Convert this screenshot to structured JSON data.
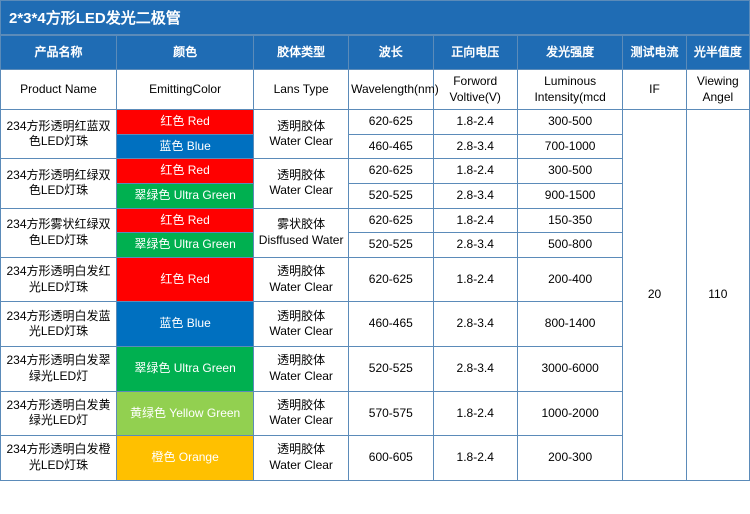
{
  "title": "2*3*4方形LED发光二极管",
  "colors": {
    "header_bg": "#1f6cb4",
    "border": "#5b8bb9",
    "red": "#ff0000",
    "blue": "#0070c0",
    "ultragreen": "#00b050",
    "yellowgreen": "#92d050",
    "orange": "#ffc000"
  },
  "col_widths": [
    "110",
    "130",
    "90",
    "80",
    "80",
    "100",
    "60",
    "60"
  ],
  "headers_cn": [
    "产品名称",
    "颜色",
    "胶体类型",
    "波长",
    "正向电压",
    "发光强度",
    "测试电流",
    "光半值度"
  ],
  "headers_en": [
    "Product Name",
    "EmittingColor",
    "Lans Type",
    "Wavelength(nm)",
    "Forword Voltive(V)",
    "Luminous Intensity(mcd",
    "IF",
    "Viewing Angel"
  ],
  "test_current": "20",
  "viewing_angle": "110",
  "products": [
    {
      "name": "234方形透明红蓝双色LED灯珠",
      "lens_cn": "透明胶体",
      "lens_en": "Water Clear",
      "rows": [
        {
          "label": "红色 Red",
          "bg": "red",
          "wl": "620-625",
          "fv": "1.8-2.4",
          "li": "300-500"
        },
        {
          "label": "蓝色 Blue",
          "bg": "blue",
          "wl": "460-465",
          "fv": "2.8-3.4",
          "li": "700-1000"
        }
      ]
    },
    {
      "name": "234方形透明红绿双色LED灯珠",
      "lens_cn": "透明胶体",
      "lens_en": "Water Clear",
      "rows": [
        {
          "label": "红色 Red",
          "bg": "red",
          "wl": "620-625",
          "fv": "1.8-2.4",
          "li": "300-500"
        },
        {
          "label": "翠绿色 Ultra Green",
          "bg": "ultragreen",
          "wl": "520-525",
          "fv": "2.8-3.4",
          "li": "900-1500"
        }
      ]
    },
    {
      "name": "234方形雾状红绿双色LED灯珠",
      "lens_cn": "雾状胶体",
      "lens_en": "Disffused Water",
      "rows": [
        {
          "label": "红色 Red",
          "bg": "red",
          "wl": "620-625",
          "fv": "1.8-2.4",
          "li": "150-350"
        },
        {
          "label": "翠绿色 Ultra Green",
          "bg": "ultragreen",
          "wl": "520-525",
          "fv": "2.8-3.4",
          "li": "500-800"
        }
      ]
    },
    {
      "name": "234方形透明白发红光LED灯珠",
      "lens_cn": "透明胶体",
      "lens_en": "Water Clear",
      "rows": [
        {
          "label": "红色 Red",
          "bg": "red",
          "wl": "620-625",
          "fv": "1.8-2.4",
          "li": "200-400"
        }
      ]
    },
    {
      "name": "234方形透明白发蓝光LED灯珠",
      "lens_cn": "透明胶体",
      "lens_en": "Water Clear",
      "rows": [
        {
          "label": "蓝色 Blue",
          "bg": "blue",
          "wl": "460-465",
          "fv": "2.8-3.4",
          "li": "800-1400"
        }
      ]
    },
    {
      "name": "234方形透明白发翠绿光LED灯",
      "lens_cn": "透明胶体",
      "lens_en": "Water Clear",
      "rows": [
        {
          "label": "翠绿色 Ultra Green",
          "bg": "ultragreen",
          "wl": "520-525",
          "fv": "2.8-3.4",
          "li": "3000-6000"
        }
      ]
    },
    {
      "name": "234方形透明白发黄绿光LED灯",
      "lens_cn": "透明胶体",
      "lens_en": "Water Clear",
      "rows": [
        {
          "label": "黄绿色 Yellow Green",
          "bg": "yellowgreen",
          "wl": "570-575",
          "fv": "1.8-2.4",
          "li": "1000-2000"
        }
      ]
    },
    {
      "name": "234方形透明白发橙光LED灯珠",
      "lens_cn": "透明胶体",
      "lens_en": "Water Clear",
      "rows": [
        {
          "label": "橙色 Orange",
          "bg": "orange",
          "wl": "600-605",
          "fv": "1.8-2.4",
          "li": "200-300"
        }
      ]
    }
  ]
}
